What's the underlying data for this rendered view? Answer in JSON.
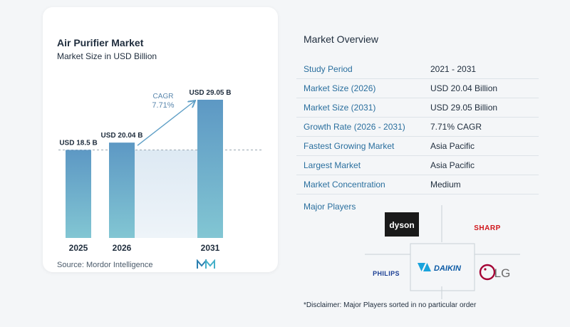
{
  "chart": {
    "title": "Air Purifier Market",
    "subtitle": "Market Size in USD Billion",
    "cagr_label": "CAGR",
    "cagr_value": "7.71%",
    "source": "Source:  Mordor Intelligence"
  },
  "chart_data": {
    "type": "bar",
    "title": "Air Purifier Market",
    "subtitle": "Market Size in USD Billion",
    "categories": [
      "2025",
      "2026",
      "2031"
    ],
    "values": [
      18.5,
      20.04,
      29.05
    ],
    "data_labels": [
      "USD 18.5 B",
      "USD 20.04 B",
      "USD 29.05 B"
    ],
    "xlabel": "",
    "ylabel": "",
    "ylim": [
      0,
      29.05
    ],
    "reference_line": 18.5,
    "annotation": "CAGR 7.71%",
    "colors": {
      "bar": "#5f9fc6",
      "bar_gradient_end": "#7fc3d4",
      "shade": "#e3edf5",
      "arrow": "#5f9fc6"
    },
    "grid": false
  },
  "overview": {
    "title": "Market Overview",
    "rows": [
      {
        "label": "Study Period",
        "value": "2021 - 2031"
      },
      {
        "label": "Market Size (2026)",
        "value": "USD 20.04 Billion"
      },
      {
        "label": "Market Size (2031)",
        "value": "USD 29.05 Billion"
      },
      {
        "label": "Growth Rate (2026 - 2031)",
        "value": "7.71% CAGR"
      },
      {
        "label": "Fastest Growing Market",
        "value": "Asia Pacific"
      },
      {
        "label": "Largest Market",
        "value": "Asia Pacific"
      },
      {
        "label": "Market Concentration",
        "value": "Medium"
      }
    ],
    "players_title": "Major Players",
    "players": [
      "dyson",
      "SHARP",
      "PHILIPS",
      "DAIKIN",
      "LG"
    ],
    "disclaimer": "*Disclaimer: Major Players sorted in no particular order"
  }
}
